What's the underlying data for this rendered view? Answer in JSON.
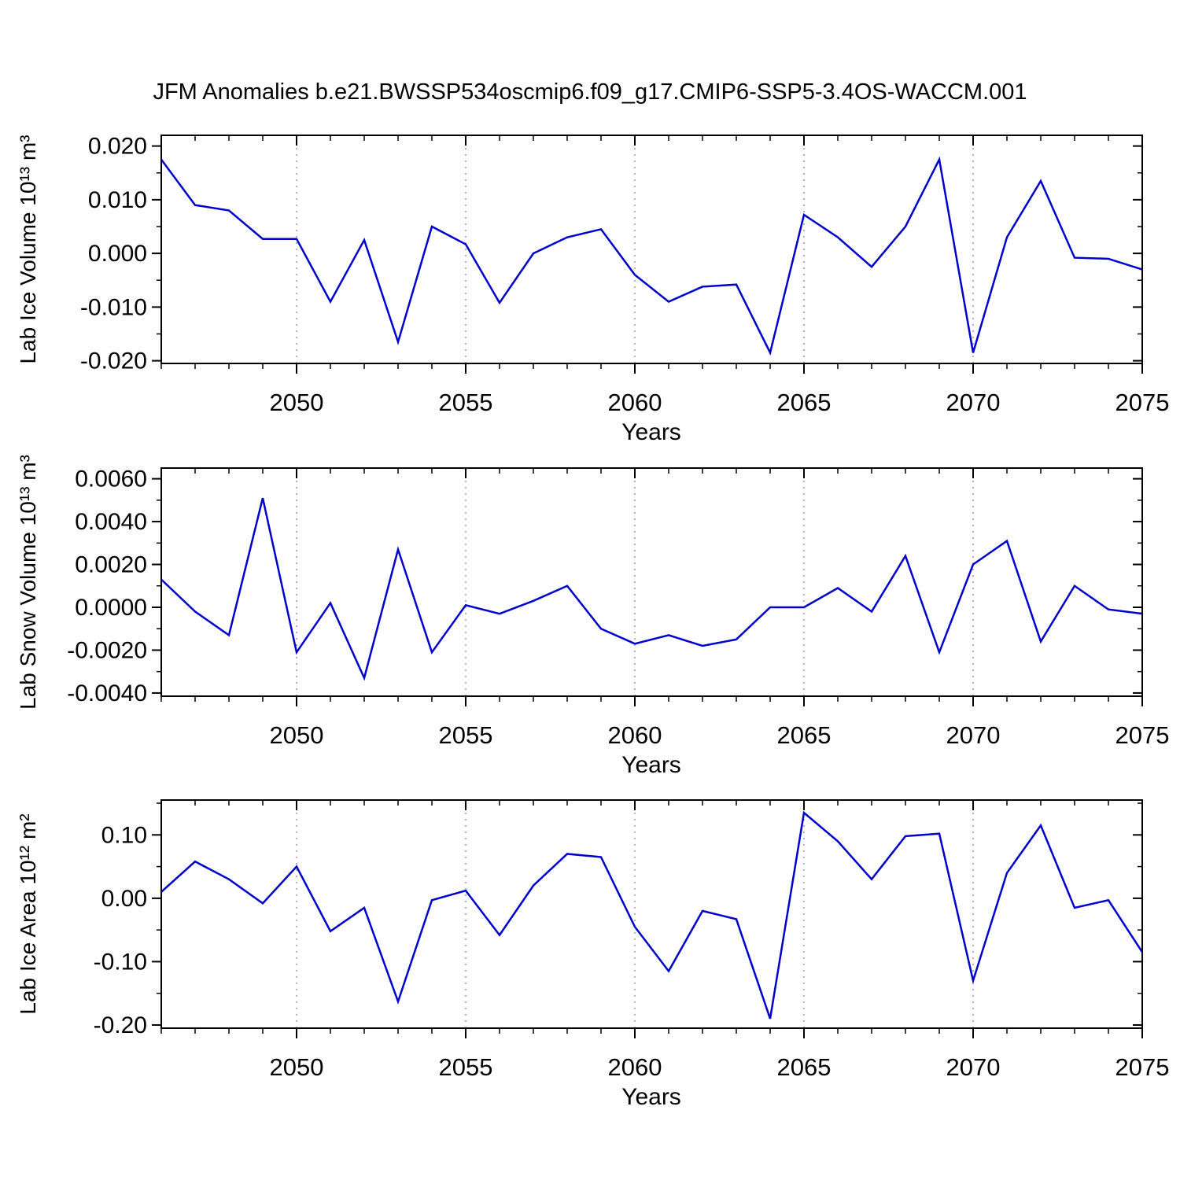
{
  "page": {
    "title": "JFM Anomalies b.e21.BWSSP534oscmip6.f09_g17.CMIP6-SSP5-3.4OS-WACCM.001",
    "background": "#FFFFFF",
    "frame_color": "#000000",
    "grid_color": "#666666"
  },
  "chart_data": [
    {
      "type": "line",
      "name": "lab-ice-volume",
      "ylabel": "Lab Ice Volume 10¹³ m³",
      "xlabel": "Years",
      "line_color": "#0000CD",
      "x": [
        2046,
        2047,
        2048,
        2049,
        2050,
        2051,
        2052,
        2053,
        2054,
        2055,
        2056,
        2057,
        2058,
        2059,
        2060,
        2061,
        2062,
        2063,
        2064,
        2065,
        2066,
        2067,
        2068,
        2069,
        2070,
        2071,
        2072,
        2073,
        2074,
        2075
      ],
      "values": [
        0.0175,
        0.009,
        0.008,
        0.0027,
        0.0027,
        -0.009,
        0.0025,
        -0.0165,
        0.005,
        0.0017,
        -0.0092,
        0.0,
        0.003,
        0.0045,
        -0.004,
        -0.009,
        -0.0062,
        -0.0058,
        -0.0185,
        0.0072,
        0.003,
        -0.0025,
        0.005,
        0.0175,
        -0.0185,
        0.003,
        0.0135,
        -0.0008,
        -0.001,
        -0.003
      ],
      "xlim": [
        2046,
        2075
      ],
      "ylim": [
        -0.0205,
        0.022
      ],
      "xticks": [
        2050,
        2055,
        2060,
        2065,
        2070,
        2075
      ],
      "xtick_labels": [
        "2050",
        "2055",
        "2060",
        "2065",
        "2070",
        "2075"
      ],
      "yticks": [
        -0.02,
        -0.01,
        0.0,
        0.01,
        0.02
      ],
      "ytick_labels": [
        "-0.020",
        "-0.010",
        "0.000",
        "0.010",
        "0.020"
      ],
      "grid_x": [
        2050,
        2055,
        2060,
        2065,
        2070
      ],
      "x_minor_step": 1,
      "y_minor_step": 0.005,
      "legend": "none",
      "grid": "dashed-vertical"
    },
    {
      "type": "line",
      "name": "lab-snow-volume",
      "ylabel": "Lab Snow Volume 10¹³ m³",
      "xlabel": "Years",
      "line_color": "#0000CD",
      "x": [
        2046,
        2047,
        2048,
        2049,
        2050,
        2051,
        2052,
        2053,
        2054,
        2055,
        2056,
        2057,
        2058,
        2059,
        2060,
        2061,
        2062,
        2063,
        2064,
        2065,
        2066,
        2067,
        2068,
        2069,
        2070,
        2071,
        2072,
        2073,
        2074,
        2075
      ],
      "values": [
        0.0013,
        -0.0002,
        -0.0013,
        0.0051,
        -0.0021,
        0.0002,
        -0.0033,
        0.0027,
        -0.0021,
        0.0001,
        -0.0003,
        0.0003,
        0.001,
        -0.001,
        -0.0017,
        -0.0013,
        -0.0018,
        -0.0015,
        0.0,
        0.0,
        0.0009,
        -0.0002,
        0.0024,
        -0.0021,
        0.002,
        0.0031,
        -0.0016,
        0.001,
        -0.0001,
        -0.0003
      ],
      "xlim": [
        2046,
        2075
      ],
      "ylim": [
        -0.00415,
        0.0065
      ],
      "xticks": [
        2050,
        2055,
        2060,
        2065,
        2070,
        2075
      ],
      "xtick_labels": [
        "2050",
        "2055",
        "2060",
        "2065",
        "2070",
        "2075"
      ],
      "yticks": [
        -0.004,
        -0.002,
        0.0,
        0.002,
        0.004,
        0.006
      ],
      "ytick_labels": [
        "-0.0040",
        "-0.0020",
        "0.0000",
        "0.0020",
        "0.0040",
        "0.0060"
      ],
      "grid_x": [
        2050,
        2055,
        2060,
        2065,
        2070
      ],
      "x_minor_step": 1,
      "y_minor_step": 0.001,
      "legend": "none",
      "grid": "dashed-vertical"
    },
    {
      "type": "line",
      "name": "lab-ice-area",
      "ylabel": "Lab Ice Area 10¹² m²",
      "xlabel": "Years",
      "line_color": "#0000CD",
      "x": [
        2046,
        2047,
        2048,
        2049,
        2050,
        2051,
        2052,
        2053,
        2054,
        2055,
        2056,
        2057,
        2058,
        2059,
        2060,
        2061,
        2062,
        2063,
        2064,
        2065,
        2066,
        2067,
        2068,
        2069,
        2070,
        2071,
        2072,
        2073,
        2074,
        2075
      ],
      "values": [
        0.01,
        0.058,
        0.03,
        -0.008,
        0.05,
        -0.052,
        -0.015,
        -0.163,
        -0.003,
        0.012,
        -0.058,
        0.02,
        0.07,
        0.065,
        -0.045,
        -0.115,
        -0.02,
        -0.033,
        -0.19,
        0.135,
        0.09,
        0.03,
        0.098,
        0.102,
        -0.13,
        0.04,
        0.115,
        -0.015,
        -0.003,
        -0.085
      ],
      "xlim": [
        2046,
        2075
      ],
      "ylim": [
        -0.205,
        0.155
      ],
      "xticks": [
        2050,
        2055,
        2060,
        2065,
        2070,
        2075
      ],
      "xtick_labels": [
        "2050",
        "2055",
        "2060",
        "2065",
        "2070",
        "2075"
      ],
      "yticks": [
        -0.2,
        -0.1,
        0.0,
        0.1
      ],
      "ytick_labels": [
        "-0.20",
        "-0.10",
        "0.00",
        "0.10"
      ],
      "grid_x": [
        2050,
        2055,
        2060,
        2065,
        2070
      ],
      "x_minor_step": 1,
      "y_minor_step": 0.05,
      "legend": "none",
      "grid": "dashed-vertical"
    }
  ]
}
